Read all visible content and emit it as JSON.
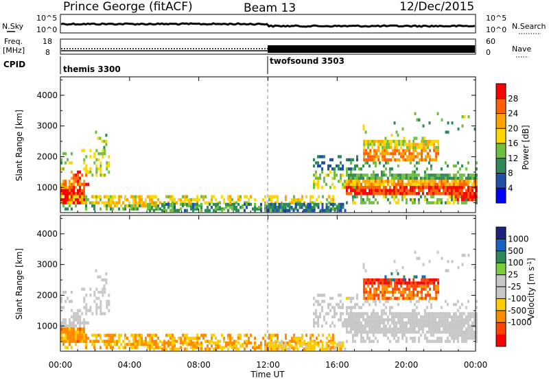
{
  "header": {
    "title": "Prince George (fitACF)",
    "beam": "Beam 13",
    "date": "12/Dec/2015"
  },
  "strip": {
    "nsky_label": "N.Sky",
    "nsearch_label": "N.Search",
    "freq_label": "Freq.",
    "freq_unit": "[MHz]",
    "nave_label": "Nave",
    "cpid_label": "CPID",
    "left_ticks_top": [
      "10^5",
      "10^0"
    ],
    "right_ticks_top": [
      "10^5",
      "10^0"
    ],
    "left_ticks_freq": [
      "18",
      "8"
    ],
    "right_ticks_nave": [
      "60",
      "0"
    ]
  },
  "cpid_segments": [
    {
      "name": "themis 3300",
      "start": "00:00",
      "end": "12:00"
    },
    {
      "name": "twofsound 3503",
      "start": "12:00",
      "end": "00:00"
    }
  ],
  "colors": {
    "power_scale": [
      "#0000ff",
      "#1f4fa8",
      "#2e8b57",
      "#6fbf3f",
      "#ffd700",
      "#ffa500",
      "#ff6000",
      "#ff0000"
    ],
    "velocity_scale": [
      "#1a237e",
      "#1565c0",
      "#2e8b57",
      "#7ccd3c",
      "#c8c8c8",
      "#c8c8c8",
      "#ffcc00",
      "#ff8c00",
      "#ff4500",
      "#ff0000"
    ]
  },
  "chart_data": [
    {
      "type": "heatmap",
      "name": "power",
      "ylabel": "Slant Range [km]",
      "yticks": [
        "1000",
        "2000",
        "3000",
        "4000"
      ],
      "ylim": [
        180,
        4600
      ],
      "xlim": [
        "00:00",
        "00:00"
      ],
      "colorbar_label": "Power [dB]",
      "colorbar_ticks": [
        "4",
        "8",
        "12",
        "16",
        "20",
        "24",
        "28"
      ],
      "clim": [
        0,
        32
      ]
    },
    {
      "type": "heatmap",
      "name": "velocity",
      "ylabel": "Slant Range [km]",
      "yticks": [
        "1000",
        "2000",
        "3000",
        "4000"
      ],
      "ylim": [
        180,
        4600
      ],
      "xlabel": "Time UT",
      "xticks": [
        "00:00",
        "04:00",
        "08:00",
        "12:00",
        "16:00",
        "20:00",
        "00:00"
      ],
      "colorbar_label": "Velocity [m s",
      "colorbar_label_sup": "-1",
      "colorbar_label_end": "]",
      "colorbar_ticks": [
        "1000",
        "500",
        "100",
        "25",
        "-25",
        "-100",
        "-500",
        "-1000"
      ]
    }
  ]
}
